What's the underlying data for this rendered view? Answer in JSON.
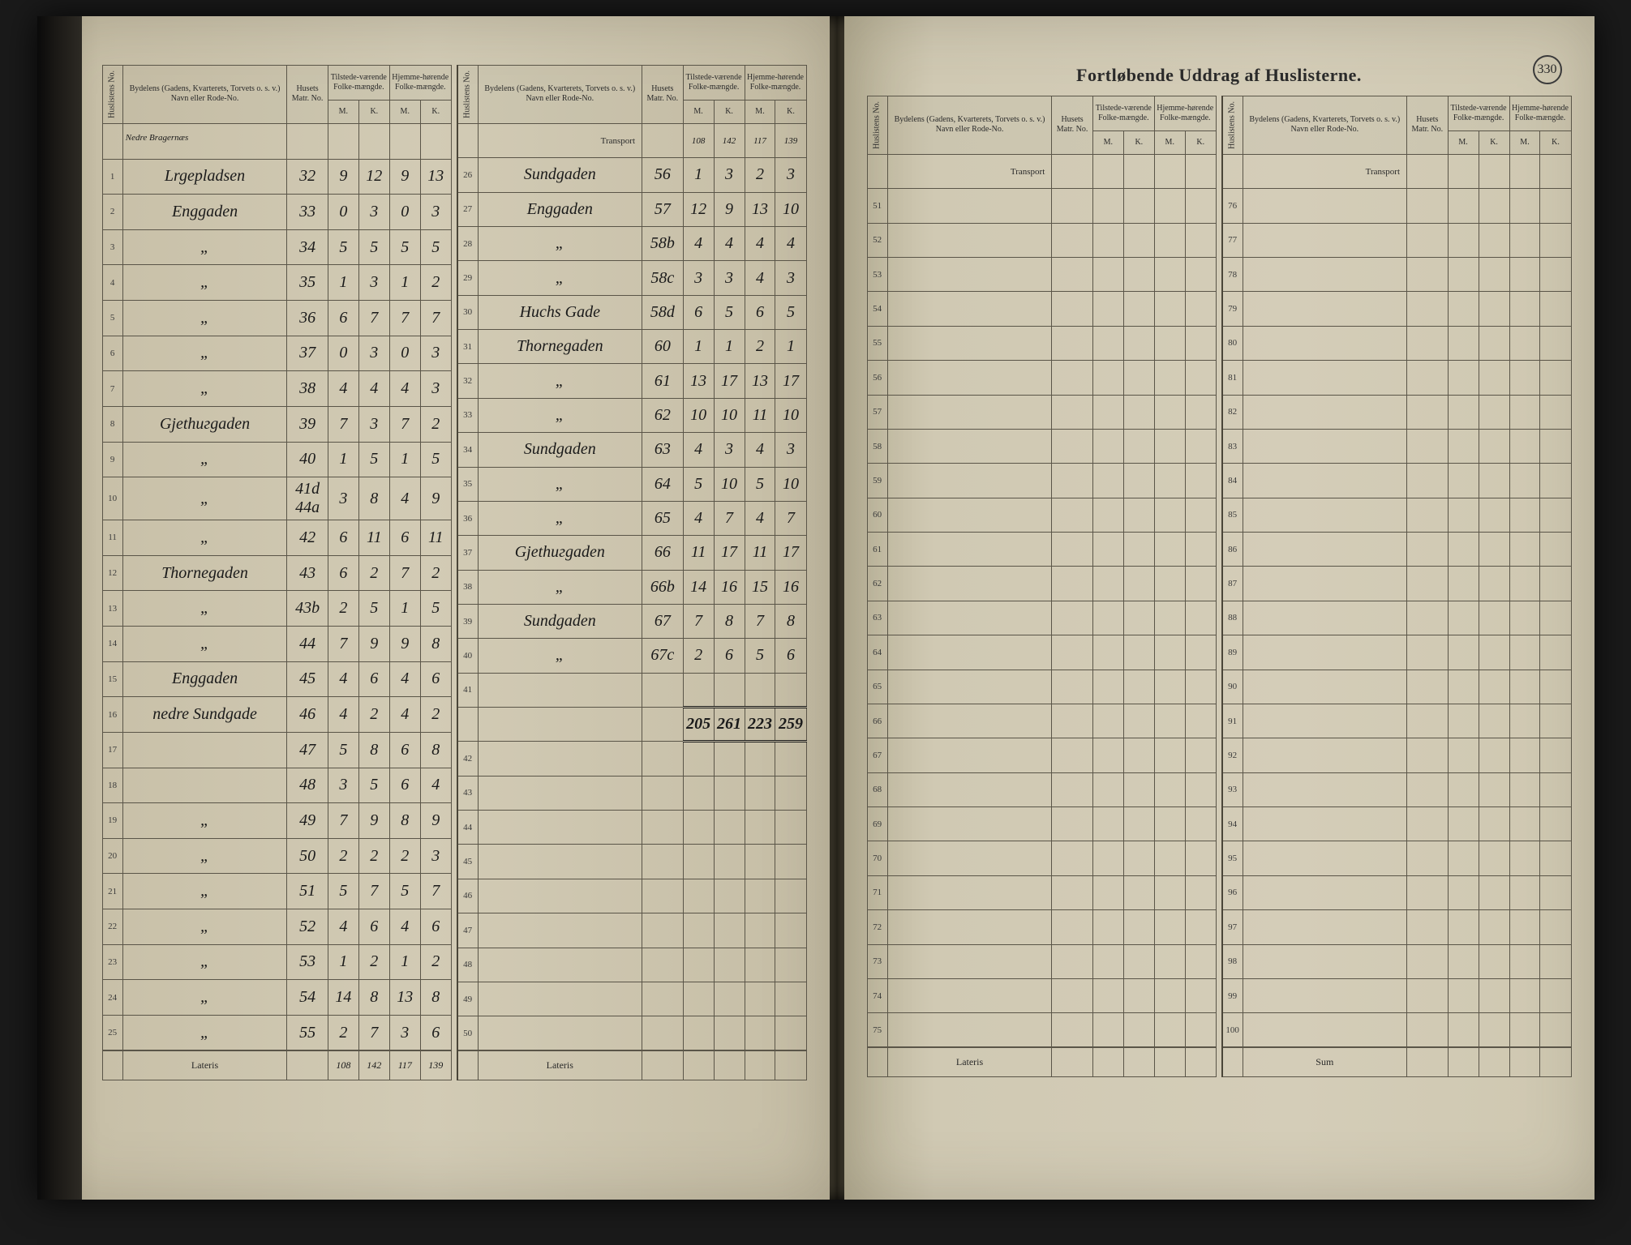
{
  "document": {
    "title_banner": "Fortløbende Uddrag af Huslisterne.",
    "page_number": "330",
    "page_heading_left": "Nedre Bragernæs"
  },
  "headers": {
    "huslistens_no": "Huslistens No.",
    "bydelens": "Bydelens (Gadens, Kvarterets, Torvets o. s. v.) Navn eller Rode-No.",
    "husets_matr_no": "Husets Matr. No.",
    "tilstede": "Tilstede-værende Folke-mængde.",
    "hjemme": "Hjemme-hørende Folke-mængde.",
    "m": "M.",
    "k": "K.",
    "transport": "Transport",
    "lateris": "Lateris",
    "sum": "Sum"
  },
  "block1": {
    "rows": [
      {
        "n": "1",
        "street": "Lrgepladsen",
        "matr": "32",
        "tm": "9",
        "tk": "12",
        "hm": "9",
        "hk": "13"
      },
      {
        "n": "2",
        "street": "Enggaden",
        "matr": "33",
        "tm": "0",
        "tk": "3",
        "hm": "0",
        "hk": "3"
      },
      {
        "n": "3",
        "street": "„",
        "matr": "34",
        "tm": "5",
        "tk": "5",
        "hm": "5",
        "hk": "5"
      },
      {
        "n": "4",
        "street": "„",
        "matr": "35",
        "tm": "1",
        "tk": "3",
        "hm": "1",
        "hk": "2"
      },
      {
        "n": "5",
        "street": "„",
        "matr": "36",
        "tm": "6",
        "tk": "7",
        "hm": "7",
        "hk": "7"
      },
      {
        "n": "6",
        "street": "„",
        "matr": "37",
        "tm": "0",
        "tk": "3",
        "hm": "0",
        "hk": "3"
      },
      {
        "n": "7",
        "street": "„",
        "matr": "38",
        "tm": "4",
        "tk": "4",
        "hm": "4",
        "hk": "3"
      },
      {
        "n": "8",
        "street": "Gjethuгgaden",
        "matr": "39",
        "tm": "7",
        "tk": "3",
        "hm": "7",
        "hk": "2"
      },
      {
        "n": "9",
        "street": "„",
        "matr": "40",
        "tm": "1",
        "tk": "5",
        "hm": "1",
        "hk": "5"
      },
      {
        "n": "10",
        "street": "„",
        "matr": "41d 44a",
        "tm": "3",
        "tk": "8",
        "hm": "4",
        "hk": "9"
      },
      {
        "n": "11",
        "street": "„",
        "matr": "42",
        "tm": "6",
        "tk": "11",
        "hm": "6",
        "hk": "11"
      },
      {
        "n": "12",
        "street": "Thornegaden",
        "matr": "43",
        "tm": "6",
        "tk": "2",
        "hm": "7",
        "hk": "2"
      },
      {
        "n": "13",
        "street": "„",
        "matr": "43b",
        "tm": "2",
        "tk": "5",
        "hm": "1",
        "hk": "5"
      },
      {
        "n": "14",
        "street": "„",
        "matr": "44",
        "tm": "7",
        "tk": "9",
        "hm": "9",
        "hk": "8"
      },
      {
        "n": "15",
        "street": "Enggaden",
        "matr": "45",
        "tm": "4",
        "tk": "6",
        "hm": "4",
        "hk": "6"
      },
      {
        "n": "16",
        "street": "nedre Sundgade",
        "matr": "46",
        "tm": "4",
        "tk": "2",
        "hm": "4",
        "hk": "2"
      },
      {
        "n": "17",
        "street": "",
        "matr": "47",
        "tm": "5",
        "tk": "8",
        "hm": "6",
        "hk": "8"
      },
      {
        "n": "18",
        "street": "",
        "matr": "48",
        "tm": "3",
        "tk": "5",
        "hm": "6",
        "hk": "4"
      },
      {
        "n": "19",
        "street": "„",
        "matr": "49",
        "tm": "7",
        "tk": "9",
        "hm": "8",
        "hk": "9"
      },
      {
        "n": "20",
        "street": "„",
        "matr": "50",
        "tm": "2",
        "tk": "2",
        "hm": "2",
        "hk": "3"
      },
      {
        "n": "21",
        "street": "„",
        "matr": "51",
        "tm": "5",
        "tk": "7",
        "hm": "5",
        "hk": "7"
      },
      {
        "n": "22",
        "street": "„",
        "matr": "52",
        "tm": "4",
        "tk": "6",
        "hm": "4",
        "hk": "6"
      },
      {
        "n": "23",
        "street": "„",
        "matr": "53",
        "tm": "1",
        "tk": "2",
        "hm": "1",
        "hk": "2"
      },
      {
        "n": "24",
        "street": "„",
        "matr": "54",
        "tm": "14",
        "tk": "8",
        "hm": "13",
        "hk": "8"
      },
      {
        "n": "25",
        "street": "„",
        "matr": "55",
        "tm": "2",
        "tk": "7",
        "hm": "3",
        "hk": "6"
      }
    ],
    "lateris": {
      "tm": "108",
      "tk": "142",
      "hm": "117",
      "hk": "139"
    }
  },
  "block2": {
    "transport": {
      "tm": "108",
      "tk": "142",
      "hm": "117",
      "hk": "139"
    },
    "rows": [
      {
        "n": "26",
        "street": "Sundgaden",
        "matr": "56",
        "tm": "1",
        "tk": "3",
        "hm": "2",
        "hk": "3"
      },
      {
        "n": "27",
        "street": "Enggaden",
        "matr": "57",
        "tm": "12",
        "tk": "9",
        "hm": "13",
        "hk": "10"
      },
      {
        "n": "28",
        "street": "„",
        "matr": "58b",
        "tm": "4",
        "tk": "4",
        "hm": "4",
        "hk": "4"
      },
      {
        "n": "29",
        "street": "„",
        "matr": "58c",
        "tm": "3",
        "tk": "3",
        "hm": "4",
        "hk": "3"
      },
      {
        "n": "30",
        "street": "Huchs Gade",
        "matr": "58d",
        "tm": "6",
        "tk": "5",
        "hm": "6",
        "hk": "5"
      },
      {
        "n": "31",
        "street": "Thornegaden",
        "matr": "60",
        "tm": "1",
        "tk": "1",
        "hm": "2",
        "hk": "1"
      },
      {
        "n": "32",
        "street": "„",
        "matr": "61",
        "tm": "13",
        "tk": "17",
        "hm": "13",
        "hk": "17"
      },
      {
        "n": "33",
        "street": "„",
        "matr": "62",
        "tm": "10",
        "tk": "10",
        "hm": "11",
        "hk": "10"
      },
      {
        "n": "34",
        "street": "Sundgaden",
        "matr": "63",
        "tm": "4",
        "tk": "3",
        "hm": "4",
        "hk": "3"
      },
      {
        "n": "35",
        "street": "„",
        "matr": "64",
        "tm": "5",
        "tk": "10",
        "hm": "5",
        "hk": "10"
      },
      {
        "n": "36",
        "street": "„",
        "matr": "65",
        "tm": "4",
        "tk": "7",
        "hm": "4",
        "hk": "7"
      },
      {
        "n": "37",
        "street": "Gjethuгgaden",
        "matr": "66",
        "tm": "11",
        "tk": "17",
        "hm": "11",
        "hk": "17"
      },
      {
        "n": "38",
        "street": "„",
        "matr": "66b",
        "tm": "14",
        "tk": "16",
        "hm": "15",
        "hk": "16"
      },
      {
        "n": "39",
        "street": "Sundgaden",
        "matr": "67",
        "tm": "7",
        "tk": "8",
        "hm": "7",
        "hk": "8"
      },
      {
        "n": "40",
        "street": "„",
        "matr": "67c",
        "tm": "2",
        "tk": "6",
        "hm": "5",
        "hk": "6"
      },
      {
        "n": "41",
        "street": "",
        "matr": "",
        "tm": "",
        "tk": "",
        "hm": "",
        "hk": ""
      },
      {
        "n": "42",
        "street": "",
        "matr": "",
        "tm": "",
        "tk": "",
        "hm": "",
        "hk": ""
      },
      {
        "n": "43",
        "street": "",
        "matr": "",
        "tm": "",
        "tk": "",
        "hm": "",
        "hk": ""
      },
      {
        "n": "44",
        "street": "",
        "matr": "",
        "tm": "",
        "tk": "",
        "hm": "",
        "hk": ""
      },
      {
        "n": "45",
        "street": "",
        "matr": "",
        "tm": "",
        "tk": "",
        "hm": "",
        "hk": ""
      },
      {
        "n": "46",
        "street": "",
        "matr": "",
        "tm": "",
        "tk": "",
        "hm": "",
        "hk": ""
      },
      {
        "n": "47",
        "street": "",
        "matr": "",
        "tm": "",
        "tk": "",
        "hm": "",
        "hk": ""
      },
      {
        "n": "48",
        "street": "",
        "matr": "",
        "tm": "",
        "tk": "",
        "hm": "",
        "hk": ""
      },
      {
        "n": "49",
        "street": "",
        "matr": "",
        "tm": "",
        "tk": "",
        "hm": "",
        "hk": ""
      },
      {
        "n": "50",
        "street": "",
        "matr": "",
        "tm": "",
        "tk": "",
        "hm": "",
        "hk": ""
      }
    ],
    "sum": {
      "tm": "205",
      "tk": "261",
      "hm": "223",
      "hk": "259"
    }
  },
  "block3": {
    "rows": [
      {
        "n": "51"
      },
      {
        "n": "52"
      },
      {
        "n": "53"
      },
      {
        "n": "54"
      },
      {
        "n": "55"
      },
      {
        "n": "56"
      },
      {
        "n": "57"
      },
      {
        "n": "58"
      },
      {
        "n": "59"
      },
      {
        "n": "60"
      },
      {
        "n": "61"
      },
      {
        "n": "62"
      },
      {
        "n": "63"
      },
      {
        "n": "64"
      },
      {
        "n": "65"
      },
      {
        "n": "66"
      },
      {
        "n": "67"
      },
      {
        "n": "68"
      },
      {
        "n": "69"
      },
      {
        "n": "70"
      },
      {
        "n": "71"
      },
      {
        "n": "72"
      },
      {
        "n": "73"
      },
      {
        "n": "74"
      },
      {
        "n": "75"
      }
    ]
  },
  "block4": {
    "rows": [
      {
        "n": "76"
      },
      {
        "n": "77"
      },
      {
        "n": "78"
      },
      {
        "n": "79"
      },
      {
        "n": "80"
      },
      {
        "n": "81"
      },
      {
        "n": "82"
      },
      {
        "n": "83"
      },
      {
        "n": "84"
      },
      {
        "n": "85"
      },
      {
        "n": "86"
      },
      {
        "n": "87"
      },
      {
        "n": "88"
      },
      {
        "n": "89"
      },
      {
        "n": "90"
      },
      {
        "n": "91"
      },
      {
        "n": "92"
      },
      {
        "n": "93"
      },
      {
        "n": "94"
      },
      {
        "n": "95"
      },
      {
        "n": "96"
      },
      {
        "n": "97"
      },
      {
        "n": "98"
      },
      {
        "n": "99"
      },
      {
        "n": "100"
      }
    ]
  },
  "style": {
    "paper_color": "#d2cbb5",
    "ink_color": "#1a1a1a",
    "rule_color": "#5a5548",
    "script_font": "Brush Script MT"
  }
}
